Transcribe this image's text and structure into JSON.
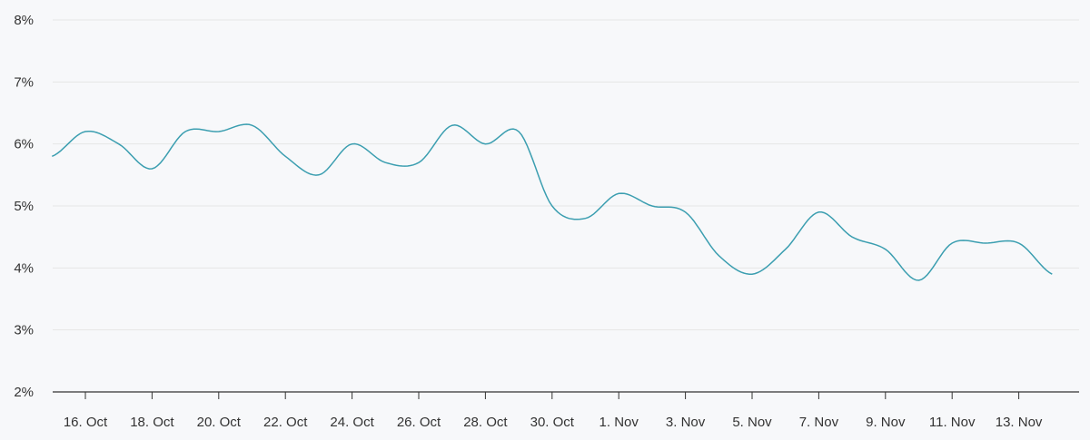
{
  "chart_data": {
    "type": "line",
    "title": "",
    "xlabel": "",
    "ylabel": "",
    "ylim": [
      2,
      8
    ],
    "y_ticks": [
      "2%",
      "3%",
      "4%",
      "5%",
      "6%",
      "7%",
      "8%"
    ],
    "x_ticks": [
      "16. Oct",
      "18. Oct",
      "20. Oct",
      "22. Oct",
      "24. Oct",
      "26. Oct",
      "28. Oct",
      "30. Oct",
      "1. Nov",
      "3. Nov",
      "5. Nov",
      "7. Nov",
      "9. Nov",
      "11. Nov",
      "13. Nov"
    ],
    "grid": true,
    "legend": "none",
    "series": [
      {
        "color": "#3b9eb0",
        "x": [
          "15. Oct",
          "16. Oct",
          "17. Oct",
          "18. Oct",
          "19. Oct",
          "20. Oct",
          "21. Oct",
          "22. Oct",
          "23. Oct",
          "24. Oct",
          "25. Oct",
          "26. Oct",
          "27. Oct",
          "28. Oct",
          "29. Oct",
          "30. Oct",
          "31. Oct",
          "1. Nov",
          "2. Nov",
          "3. Nov",
          "4. Nov",
          "5. Nov",
          "6. Nov",
          "7. Nov",
          "8. Nov",
          "9. Nov",
          "10. Nov",
          "11. Nov",
          "12. Nov",
          "13. Nov",
          "14. Nov"
        ],
        "values": [
          5.8,
          6.2,
          6.0,
          5.6,
          6.2,
          6.2,
          6.3,
          5.8,
          5.5,
          6.0,
          5.7,
          5.7,
          6.3,
          6.0,
          6.2,
          5.0,
          4.8,
          5.2,
          5.0,
          4.9,
          4.2,
          3.9,
          4.3,
          4.9,
          4.5,
          4.3,
          3.8,
          4.4,
          4.4,
          4.4,
          3.9
        ]
      }
    ]
  }
}
